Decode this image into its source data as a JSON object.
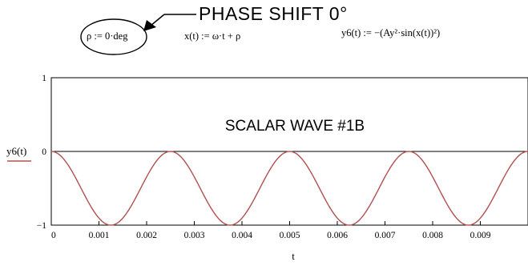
{
  "annotations": {
    "callout": "PHASE SHIFT 0°",
    "eq_rho": "ρ := 0·deg",
    "eq_x": "x(t) := ω·t + ρ",
    "eq_y6": "y6(t) := −(Ay²·sin(x(t))²)"
  },
  "chart_data": {
    "type": "line",
    "title": "SCALAR WAVE #1B",
    "xlabel": "t",
    "ylabel": "y6(t)",
    "xlim": [
      0,
      0.01
    ],
    "ylim": [
      -1,
      1
    ],
    "x_ticks": [
      "0",
      "0.001",
      "0.002",
      "0.003",
      "0.004",
      "0.005",
      "0.006",
      "0.007",
      "0.008",
      "0.009"
    ],
    "y_ticks": [
      "1",
      "0",
      "−1"
    ],
    "series": [
      {
        "name": "y6(t)",
        "color": "#b2504f",
        "function": "y = -sin(2*pi*200*t)^2",
        "x": [
          0,
          0.00025,
          0.0005,
          0.00075,
          0.001,
          0.00125,
          0.0015,
          0.00175,
          0.002,
          0.00225,
          0.0025,
          0.00275,
          0.003,
          0.00325,
          0.0035,
          0.00375,
          0.004,
          0.00425,
          0.0045,
          0.00475,
          0.005,
          0.00525,
          0.0055,
          0.00575,
          0.006,
          0.00625,
          0.0065,
          0.00675,
          0.007,
          0.00725,
          0.0075,
          0.00775,
          0.008,
          0.00825,
          0.0085,
          0.00875,
          0.009,
          0.00925,
          0.0095,
          0.00975,
          0.01
        ],
        "y": [
          0,
          -0.095,
          -0.345,
          -0.655,
          -0.905,
          -1,
          -0.905,
          -0.655,
          -0.345,
          -0.095,
          0,
          -0.095,
          -0.345,
          -0.655,
          -0.905,
          -1,
          -0.905,
          -0.655,
          -0.345,
          -0.095,
          0,
          -0.095,
          -0.345,
          -0.655,
          -0.905,
          -1,
          -0.905,
          -0.655,
          -0.345,
          -0.095,
          0,
          -0.095,
          -0.345,
          -0.655,
          -0.905,
          -1,
          -0.905,
          -0.655,
          -0.345,
          -0.095,
          0
        ]
      }
    ]
  }
}
